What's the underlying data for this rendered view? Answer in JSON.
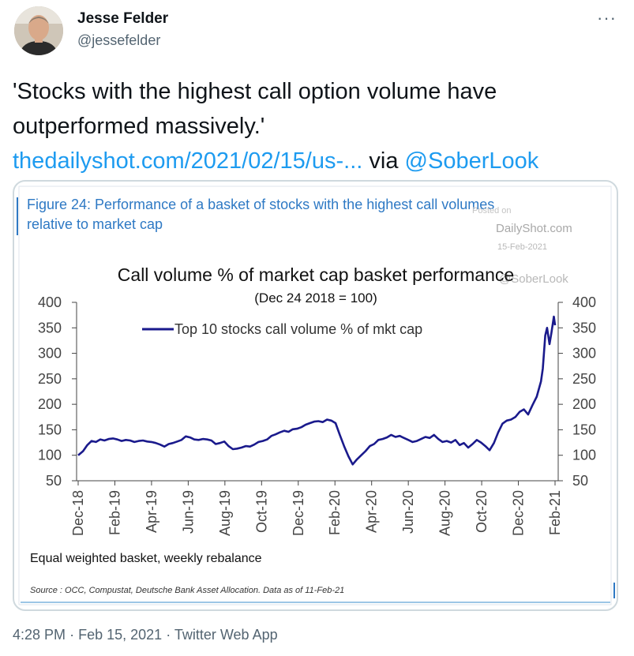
{
  "author": {
    "name": "Jesse Felder",
    "handle": "@jessefelder",
    "more_icon": "more-horizontal-icon"
  },
  "tweet": {
    "text_quote": "'Stocks with the highest call option volume have outperformed massively.'",
    "link": "thedailyshot.com/2021/02/15/us-...",
    "via": "via",
    "mention": "@SoberLook"
  },
  "figure": {
    "header_line1": "Figure 24: Performance of a basket of stocks with the highest call volumes",
    "header_line2": "relative to market cap",
    "watermark_posted": "Posted on",
    "watermark_site": "DailyShot.com",
    "watermark_date": "15-Feb-2021",
    "watermark_handle": "@SoberLook",
    "footnote": "Equal weighted basket, weekly rebalance",
    "source": "Source : OCC, Compustat, Deutsche Bank Asset Allocation. Data as of 11-Feb-21",
    "accent_color": "#2e79c4"
  },
  "chart_data": {
    "type": "line",
    "title": "Call volume % of market cap basket performance",
    "subtitle": "(Dec 24 2018 = 100)",
    "ylim": [
      50,
      400
    ],
    "yticks": [
      400,
      350,
      300,
      250,
      200,
      150,
      100,
      50
    ],
    "xlim": [
      "2018-12-24",
      "2021-02-11"
    ],
    "xticks": [
      "Dec-18",
      "Feb-19",
      "Apr-19",
      "Jun-19",
      "Aug-19",
      "Oct-19",
      "Dec-19",
      "Feb-20",
      "Apr-20",
      "Jun-20",
      "Aug-20",
      "Oct-20",
      "Dec-20",
      "Feb-21"
    ],
    "legend_placement": "top-center",
    "series": [
      {
        "name": "Top 10 stocks call volume % of mkt cap",
        "color": "#1a1a8c",
        "points": [
          [
            "2018-12-24",
            100
          ],
          [
            "2019-01-01",
            108
          ],
          [
            "2019-01-08",
            120
          ],
          [
            "2019-01-15",
            128
          ],
          [
            "2019-01-22",
            126
          ],
          [
            "2019-01-29",
            131
          ],
          [
            "2019-02-05",
            129
          ],
          [
            "2019-02-12",
            132
          ],
          [
            "2019-02-19",
            133
          ],
          [
            "2019-02-26",
            131
          ],
          [
            "2019-03-05",
            128
          ],
          [
            "2019-03-12",
            130
          ],
          [
            "2019-03-19",
            129
          ],
          [
            "2019-03-26",
            126
          ],
          [
            "2019-04-02",
            128
          ],
          [
            "2019-04-09",
            129
          ],
          [
            "2019-04-16",
            127
          ],
          [
            "2019-04-23",
            126
          ],
          [
            "2019-04-30",
            124
          ],
          [
            "2019-05-07",
            121
          ],
          [
            "2019-05-14",
            117
          ],
          [
            "2019-05-21",
            122
          ],
          [
            "2019-05-28",
            124
          ],
          [
            "2019-06-04",
            127
          ],
          [
            "2019-06-11",
            130
          ],
          [
            "2019-06-18",
            137
          ],
          [
            "2019-06-25",
            135
          ],
          [
            "2019-07-02",
            131
          ],
          [
            "2019-07-09",
            130
          ],
          [
            "2019-07-16",
            132
          ],
          [
            "2019-07-23",
            131
          ],
          [
            "2019-07-30",
            129
          ],
          [
            "2019-08-06",
            122
          ],
          [
            "2019-08-13",
            124
          ],
          [
            "2019-08-20",
            127
          ],
          [
            "2019-08-27",
            118
          ],
          [
            "2019-09-03",
            112
          ],
          [
            "2019-09-10",
            113
          ],
          [
            "2019-09-17",
            115
          ],
          [
            "2019-09-24",
            118
          ],
          [
            "2019-10-01",
            117
          ],
          [
            "2019-10-08",
            121
          ],
          [
            "2019-10-15",
            126
          ],
          [
            "2019-10-22",
            128
          ],
          [
            "2019-10-29",
            131
          ],
          [
            "2019-11-05",
            138
          ],
          [
            "2019-11-12",
            141
          ],
          [
            "2019-11-19",
            145
          ],
          [
            "2019-11-26",
            148
          ],
          [
            "2019-12-03",
            146
          ],
          [
            "2019-12-10",
            151
          ],
          [
            "2019-12-17",
            152
          ],
          [
            "2019-12-24",
            155
          ],
          [
            "2019-12-31",
            160
          ],
          [
            "2020-01-07",
            163
          ],
          [
            "2020-01-14",
            166
          ],
          [
            "2020-01-21",
            167
          ],
          [
            "2020-01-28",
            165
          ],
          [
            "2020-02-04",
            170
          ],
          [
            "2020-02-11",
            168
          ],
          [
            "2020-02-18",
            163
          ],
          [
            "2020-02-25",
            140
          ],
          [
            "2020-03-03",
            118
          ],
          [
            "2020-03-10",
            98
          ],
          [
            "2020-03-17",
            82
          ],
          [
            "2020-03-24",
            92
          ],
          [
            "2020-03-31",
            100
          ],
          [
            "2020-04-07",
            108
          ],
          [
            "2020-04-14",
            118
          ],
          [
            "2020-04-21",
            122
          ],
          [
            "2020-04-28",
            130
          ],
          [
            "2020-05-05",
            132
          ],
          [
            "2020-05-12",
            135
          ],
          [
            "2020-05-19",
            140
          ],
          [
            "2020-05-26",
            136
          ],
          [
            "2020-06-02",
            138
          ],
          [
            "2020-06-09",
            134
          ],
          [
            "2020-06-16",
            130
          ],
          [
            "2020-06-23",
            126
          ],
          [
            "2020-06-30",
            128
          ],
          [
            "2020-07-07",
            132
          ],
          [
            "2020-07-14",
            136
          ],
          [
            "2020-07-21",
            134
          ],
          [
            "2020-07-28",
            140
          ],
          [
            "2020-08-04",
            132
          ],
          [
            "2020-08-11",
            126
          ],
          [
            "2020-08-18",
            128
          ],
          [
            "2020-08-25",
            125
          ],
          [
            "2020-09-01",
            130
          ],
          [
            "2020-09-08",
            120
          ],
          [
            "2020-09-15",
            124
          ],
          [
            "2020-09-22",
            115
          ],
          [
            "2020-09-29",
            122
          ],
          [
            "2020-10-06",
            130
          ],
          [
            "2020-10-13",
            125
          ],
          [
            "2020-10-20",
            118
          ],
          [
            "2020-10-27",
            110
          ],
          [
            "2020-11-03",
            124
          ],
          [
            "2020-11-10",
            145
          ],
          [
            "2020-11-17",
            162
          ],
          [
            "2020-11-24",
            168
          ],
          [
            "2020-12-01",
            170
          ],
          [
            "2020-12-08",
            175
          ],
          [
            "2020-12-15",
            185
          ],
          [
            "2020-12-22",
            190
          ],
          [
            "2020-12-29",
            180
          ],
          [
            "2021-01-05",
            198
          ],
          [
            "2021-01-12",
            215
          ],
          [
            "2021-01-19",
            245
          ],
          [
            "2021-01-22",
            270
          ],
          [
            "2021-01-26",
            335
          ],
          [
            "2021-01-29",
            350
          ],
          [
            "2021-02-02",
            318
          ],
          [
            "2021-02-05",
            340
          ],
          [
            "2021-02-09",
            372
          ],
          [
            "2021-02-11",
            355
          ]
        ]
      }
    ]
  },
  "footer": {
    "time": "4:28 PM",
    "sep1": "·",
    "date": "Feb 15, 2021",
    "sep2": "·",
    "client": "Twitter Web App"
  }
}
